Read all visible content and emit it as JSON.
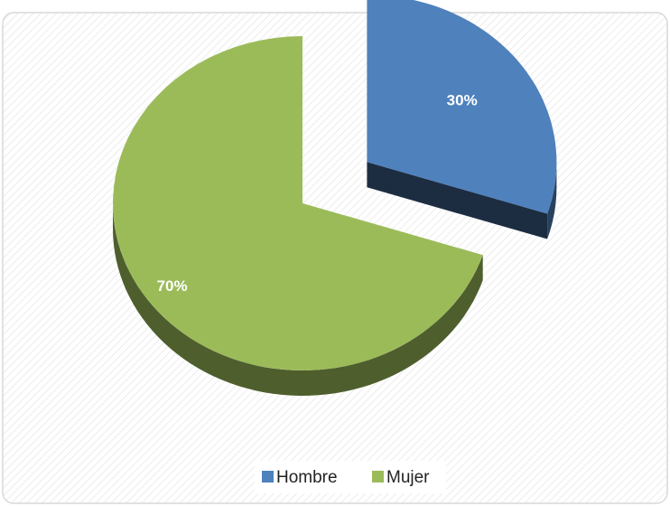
{
  "chart_data": {
    "type": "pie",
    "categories": [
      "Hombre",
      "Mujer"
    ],
    "values": [
      30,
      70
    ],
    "value_labels": [
      "30%",
      "70%"
    ],
    "colors": [
      "#4f81bd",
      "#9bbb59"
    ],
    "legend": "bottom"
  }
}
